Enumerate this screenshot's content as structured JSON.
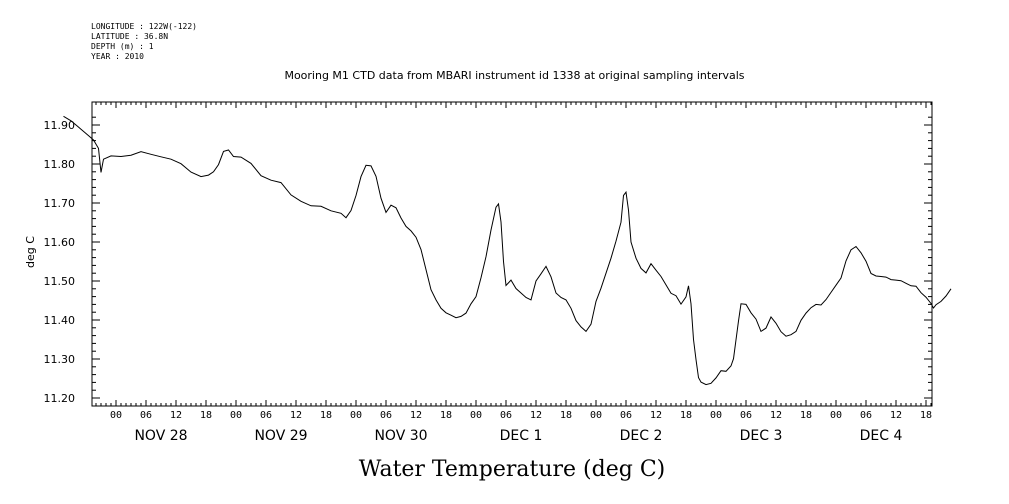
{
  "header": {
    "meta_lines": [
      "LONGITUDE : 122W(-122)",
      "LATITUDE : 36.8N",
      "DEPTH (m) : 1",
      "YEAR : 2010"
    ],
    "title": "Mooring M1 CTD data from MBARI instrument id 1338 at original sampling intervals"
  },
  "chart_data": {
    "type": "line",
    "title": "Mooring M1 CTD data from MBARI instrument id 1338 at original sampling intervals",
    "xlabel": "Water Temperature (deg C)",
    "ylabel": "deg C",
    "ylim": [
      11.2,
      11.93
    ],
    "xlim_hours": [
      -11,
      153
    ],
    "y_ticks": [
      "11.20",
      "11.30",
      "11.40",
      "11.50",
      "11.60",
      "11.70",
      "11.80",
      "11.90"
    ],
    "y_tick_values": [
      11.2,
      11.3,
      11.4,
      11.5,
      11.6,
      11.7,
      11.8,
      11.9
    ],
    "x_hour_tick_labels": [
      "00",
      "06",
      "12",
      "18"
    ],
    "day_labels": [
      "NOV 28",
      "NOV 29",
      "NOV 30",
      "DEC  1",
      "DEC  2",
      "DEC  3",
      "DEC  4"
    ],
    "line_color": "#000000",
    "series": [
      {
        "points": [
          [
            -10.5,
            11.92
          ],
          [
            -9,
            11.91
          ],
          [
            -7,
            11.89
          ],
          [
            -5.5,
            11.875
          ],
          [
            -4.5,
            11.86
          ],
          [
            -3.5,
            11.84
          ],
          [
            -3,
            11.78
          ],
          [
            -2.5,
            11.81
          ],
          [
            -1,
            11.82
          ],
          [
            1,
            11.82
          ],
          [
            3,
            11.825
          ],
          [
            5,
            11.83
          ],
          [
            7,
            11.825
          ],
          [
            9,
            11.82
          ],
          [
            11,
            11.81
          ],
          [
            13,
            11.8
          ],
          [
            15,
            11.78
          ],
          [
            17,
            11.77
          ],
          [
            18.5,
            11.77
          ],
          [
            19.5,
            11.78
          ],
          [
            20.5,
            11.8
          ],
          [
            21.5,
            11.83
          ],
          [
            22.5,
            11.835
          ],
          [
            23.5,
            11.82
          ],
          [
            25,
            11.82
          ],
          [
            27,
            11.8
          ],
          [
            29,
            11.77
          ],
          [
            31,
            11.76
          ],
          [
            33,
            11.75
          ],
          [
            35,
            11.72
          ],
          [
            37,
            11.705
          ],
          [
            39,
            11.695
          ],
          [
            41,
            11.69
          ],
          [
            43,
            11.68
          ],
          [
            45,
            11.675
          ],
          [
            46,
            11.66
          ],
          [
            47,
            11.68
          ],
          [
            48,
            11.72
          ],
          [
            49,
            11.77
          ],
          [
            50,
            11.795
          ],
          [
            51,
            11.795
          ],
          [
            52,
            11.77
          ],
          [
            53,
            11.71
          ],
          [
            54,
            11.675
          ],
          [
            55,
            11.695
          ],
          [
            56,
            11.69
          ],
          [
            57,
            11.66
          ],
          [
            58,
            11.64
          ],
          [
            59,
            11.63
          ],
          [
            60,
            11.61
          ],
          [
            61,
            11.58
          ],
          [
            62,
            11.53
          ],
          [
            63,
            11.48
          ],
          [
            64,
            11.45
          ],
          [
            65,
            11.43
          ],
          [
            66,
            11.42
          ],
          [
            67,
            11.41
          ],
          [
            68,
            11.405
          ],
          [
            69,
            11.41
          ],
          [
            70,
            11.42
          ],
          [
            71,
            11.44
          ],
          [
            72,
            11.46
          ],
          [
            73,
            11.51
          ],
          [
            74,
            11.56
          ],
          [
            75,
            11.63
          ],
          [
            76,
            11.69
          ],
          [
            76.5,
            11.7
          ],
          [
            77,
            11.65
          ],
          [
            77.5,
            11.55
          ],
          [
            78,
            11.49
          ],
          [
            79,
            11.5
          ],
          [
            80,
            11.48
          ],
          [
            81,
            11.47
          ],
          [
            82,
            11.46
          ],
          [
            83,
            11.45
          ],
          [
            84,
            11.5
          ],
          [
            85,
            11.52
          ],
          [
            86,
            11.535
          ],
          [
            87,
            11.51
          ],
          [
            88,
            11.47
          ],
          [
            89,
            11.46
          ],
          [
            90,
            11.45
          ],
          [
            91,
            11.43
          ],
          [
            92,
            11.4
          ],
          [
            93,
            11.38
          ],
          [
            94,
            11.37
          ],
          [
            95,
            11.39
          ],
          [
            96,
            11.45
          ],
          [
            97,
            11.48
          ],
          [
            98,
            11.52
          ],
          [
            99,
            11.56
          ],
          [
            100,
            11.6
          ],
          [
            101,
            11.65
          ],
          [
            101.5,
            11.72
          ],
          [
            102,
            11.73
          ],
          [
            102.5,
            11.68
          ],
          [
            103,
            11.6
          ],
          [
            104,
            11.56
          ],
          [
            105,
            11.53
          ],
          [
            106,
            11.52
          ],
          [
            107,
            11.545
          ],
          [
            108,
            11.53
          ],
          [
            109,
            11.51
          ],
          [
            110,
            11.49
          ],
          [
            111,
            11.47
          ],
          [
            112,
            11.46
          ],
          [
            113,
            11.44
          ],
          [
            114,
            11.46
          ],
          [
            114.5,
            11.49
          ],
          [
            115,
            11.44
          ],
          [
            115.5,
            11.35
          ],
          [
            116,
            11.3
          ],
          [
            116.5,
            11.25
          ],
          [
            117,
            11.24
          ],
          [
            118,
            11.235
          ],
          [
            119,
            11.24
          ],
          [
            120,
            11.25
          ],
          [
            121,
            11.27
          ],
          [
            122,
            11.27
          ],
          [
            123,
            11.28
          ],
          [
            123.5,
            11.3
          ],
          [
            124,
            11.35
          ],
          [
            124.5,
            11.4
          ],
          [
            125,
            11.44
          ],
          [
            126,
            11.44
          ],
          [
            127,
            11.42
          ],
          [
            128,
            11.4
          ],
          [
            129,
            11.37
          ],
          [
            130,
            11.38
          ],
          [
            131,
            11.41
          ],
          [
            132,
            11.39
          ],
          [
            133,
            11.37
          ],
          [
            134,
            11.36
          ],
          [
            135,
            11.36
          ],
          [
            136,
            11.37
          ],
          [
            137,
            11.4
          ],
          [
            138,
            11.42
          ],
          [
            139,
            11.43
          ],
          [
            140,
            11.44
          ],
          [
            141,
            11.44
          ],
          [
            142,
            11.45
          ],
          [
            143,
            11.47
          ],
          [
            144,
            11.49
          ],
          [
            145,
            11.51
          ],
          [
            146,
            11.55
          ],
          [
            147,
            11.58
          ],
          [
            148,
            11.59
          ],
          [
            149,
            11.57
          ],
          [
            150,
            11.55
          ],
          [
            151,
            11.52
          ],
          [
            152,
            11.515
          ],
          [
            153,
            11.51
          ],
          [
            154,
            11.51
          ],
          [
            155,
            11.505
          ],
          [
            156,
            11.5
          ],
          [
            157,
            11.5
          ],
          [
            158,
            11.495
          ],
          [
            159,
            11.49
          ],
          [
            160,
            11.485
          ],
          [
            161,
            11.47
          ],
          [
            162,
            11.46
          ],
          [
            163,
            11.44
          ],
          [
            163.5,
            11.43
          ],
          [
            164,
            11.44
          ],
          [
            165,
            11.45
          ],
          [
            166,
            11.46
          ],
          [
            167,
            11.48
          ]
        ]
      }
    ]
  }
}
